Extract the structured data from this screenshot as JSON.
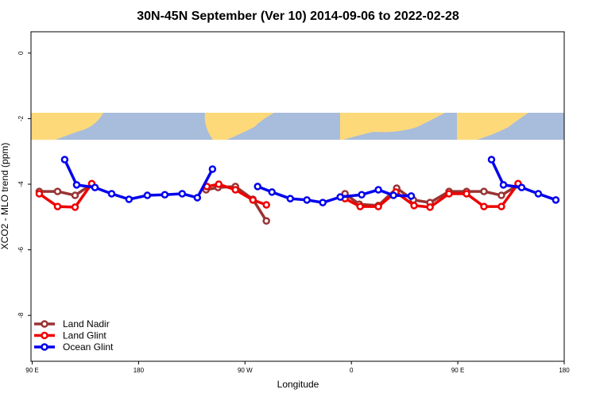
{
  "chart_data": {
    "type": "line",
    "title": "30N-45N September (Ver 10)   2014-09-06 to 2022-02-28",
    "x_label": "Longitude",
    "y_label": "XCO2 - MLO trend (ppm)",
    "xlim": [
      89,
      540
    ],
    "ylim": [
      -9.4,
      0.65
    ],
    "xticks": [
      {
        "value": 90,
        "label": "90 E"
      },
      180,
      {
        "value": 270,
        "label": "90 W"
      },
      {
        "value": 360,
        "label": "0"
      },
      {
        "value": 450,
        "label": "90 E"
      },
      {
        "value": 540,
        "label": "180"
      }
    ],
    "yticks": [
      0,
      -2,
      -4,
      -6,
      -8
    ],
    "legend": "bottom-left",
    "series": [
      {
        "name": "Land Nadir",
        "color": "#993333",
        "x": [
          96,
          111.5,
          126.3,
          140.4,
          null,
          237.1,
          247.2,
          261.9,
          276.7,
          288.1,
          null,
          354.6,
          366.7,
          382.8,
          398.3,
          412.4,
          426.5,
          442.6,
          457.4,
          472.1,
          486.9,
          501
        ],
        "values": [
          -4.22,
          -4.22,
          -4.34,
          -4.0,
          null,
          -4.17,
          -4.1,
          -4.07,
          -4.46,
          -5.12,
          null,
          -4.29,
          -4.61,
          -4.65,
          -4.12,
          -4.48,
          -4.56,
          -4.22,
          -4.22,
          -4.22,
          -4.34,
          -4.02
        ]
      },
      {
        "name": "Land Glint",
        "color": "#ee0000",
        "x": [
          96,
          111.5,
          126.3,
          140.4,
          null,
          237.8,
          247.8,
          261.9,
          276.7,
          288.1,
          null,
          354.6,
          367.4,
          382.8,
          397.6,
          413,
          426.5,
          442.6,
          457.4,
          472.1,
          486.9,
          501
        ],
        "values": [
          -4.29,
          -4.68,
          -4.7,
          -3.98,
          null,
          -4.07,
          -4.0,
          -4.17,
          -4.48,
          -4.63,
          null,
          -4.44,
          -4.68,
          -4.68,
          -4.24,
          -4.65,
          -4.7,
          -4.29,
          -4.29,
          -4.68,
          -4.68,
          -3.98
        ]
      },
      {
        "name": "Ocean Glint",
        "color": "#0000ee",
        "x": [
          117.5,
          127.6,
          143.1,
          157.2,
          171.9,
          187.4,
          202.2,
          216.9,
          229.7,
          242.5,
          null,
          280.7,
          292.8,
          308.3,
          322.4,
          335.8,
          350.6,
          368.7,
          382.8,
          395.6,
          410.6,
          null,
          478.5,
          488.6,
          504,
          518.1,
          532.9
        ],
        "values": [
          -3.25,
          -4.02,
          -4.1,
          -4.29,
          -4.46,
          -4.34,
          -4.32,
          -4.29,
          -4.41,
          -3.54,
          null,
          -4.07,
          -4.24,
          -4.44,
          -4.48,
          -4.56,
          -4.39,
          -4.32,
          -4.17,
          -4.34,
          -4.36,
          null,
          -3.25,
          -4.02,
          -4.1,
          -4.29,
          -4.48
        ]
      }
    ]
  }
}
